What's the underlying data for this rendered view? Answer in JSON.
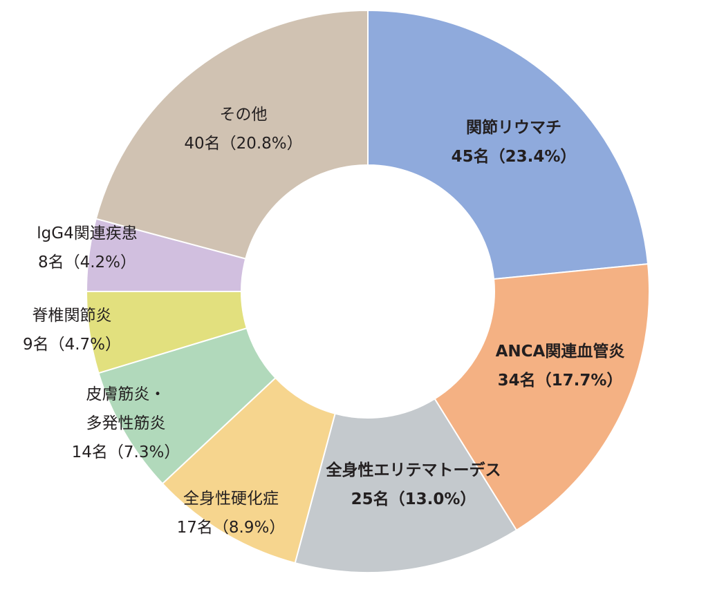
{
  "chart_data": {
    "type": "pie",
    "donut": true,
    "slices": [
      {
        "name": "関節リウマチ",
        "count": 45,
        "value_label": "45名（23.4%）",
        "percent": 23.4,
        "color": "#8faadc",
        "bold": true
      },
      {
        "name": "ANCA関連血管炎",
        "count": 34,
        "value_label": "34名（17.7%）",
        "percent": 17.7,
        "color": "#f4b183",
        "bold": true
      },
      {
        "name": "全身性エリテマトーデス",
        "count": 25,
        "value_label": "25名（13.0%）",
        "percent": 13.0,
        "color": "#c4c9cd",
        "bold": true
      },
      {
        "name": "全身性硬化症",
        "count": 17,
        "value_label": "17名（8.9%）",
        "percent": 8.9,
        "color": "#f6d58e",
        "bold": false
      },
      {
        "name_lines": [
          "皮膚筋炎・",
          "多発性筋炎"
        ],
        "count": 14,
        "value_label": "14名（7.3%）",
        "percent": 7.3,
        "color": "#b1d9bb",
        "bold": false
      },
      {
        "name": "脊椎関節炎",
        "count": 9,
        "value_label": "9名（4.7%）",
        "percent": 4.7,
        "color": "#e2e07e",
        "bold": false
      },
      {
        "name": "lgG4関連疾患",
        "count": 8,
        "value_label": "8名（4.2%）",
        "percent": 4.2,
        "color": "#d1bfdf",
        "bold": false
      },
      {
        "name": "その他",
        "count": 40,
        "value_label": "40名（20.8%）",
        "percent": 20.8,
        "color": "#d0c2b2",
        "bold": false
      }
    ]
  }
}
